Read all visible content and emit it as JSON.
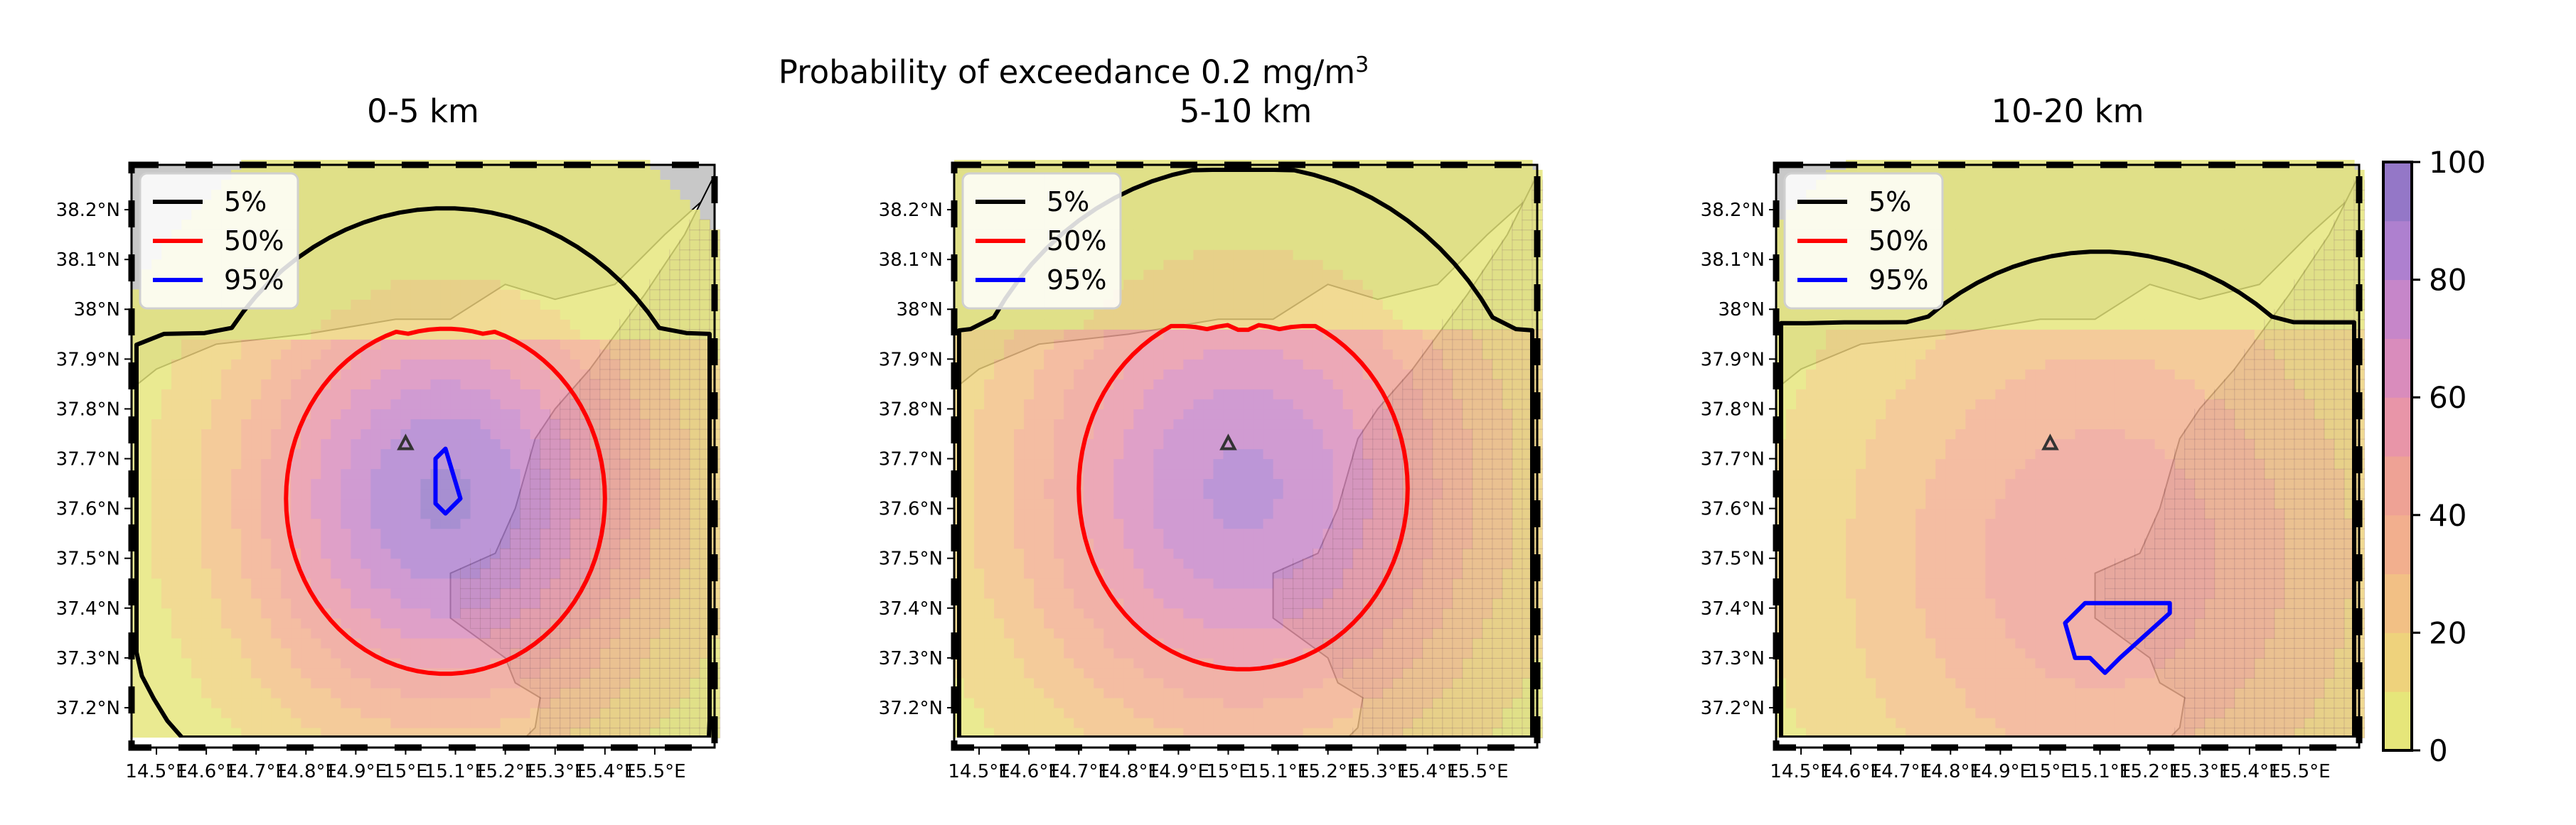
{
  "figure": {
    "title_main": "Probability of exceedance 0.2 mg/m",
    "title_sup": "3",
    "threshold_value": 0.2
  },
  "panels": [
    {
      "title": "0-5 km",
      "peak": 92,
      "spread": 1.0,
      "center": [
        15.08,
        37.62
      ],
      "p95": [
        [
          15.08,
          37.72
        ],
        [
          15.11,
          37.62
        ],
        [
          15.08,
          37.59
        ],
        [
          15.06,
          37.61
        ],
        [
          15.06,
          37.7
        ]
      ]
    },
    {
      "title": "5-10 km",
      "peak": 82,
      "spread": 1.15,
      "center": [
        15.03,
        37.64
      ],
      "p95": []
    },
    {
      "title": "10-20 km",
      "peak": 48,
      "spread": 1.35,
      "center": [
        15.1,
        37.5
      ],
      "p95": [
        [
          15.03,
          37.37
        ],
        [
          15.07,
          37.41
        ],
        [
          15.24,
          37.41
        ],
        [
          15.24,
          37.39
        ],
        [
          15.14,
          37.3
        ],
        [
          15.11,
          37.27
        ],
        [
          15.08,
          37.3
        ],
        [
          15.05,
          37.3
        ]
      ]
    }
  ],
  "map": {
    "lon_range": [
      14.45,
      15.62
    ],
    "lat_range": [
      37.12,
      38.29
    ],
    "lon_ticks": [
      14.5,
      14.6,
      14.7,
      14.8,
      14.9,
      15.0,
      15.1,
      15.2,
      15.3,
      15.4,
      15.5
    ],
    "lon_tick_labels": [
      "14.5°E",
      "14.6°E",
      "14.7°E",
      "14.8°E",
      "14.9°E",
      "15°E",
      "15.1°E",
      "15.2°E",
      "15.3°E",
      "15.4°E",
      "15.5°E"
    ],
    "lat_ticks": [
      37.2,
      37.3,
      37.4,
      37.5,
      37.6,
      37.7,
      37.8,
      37.9,
      38.0,
      38.1,
      38.2
    ],
    "lat_tick_labels": [
      "37.2°N",
      "37.3°N",
      "37.4°N",
      "37.5°N",
      "37.6°N",
      "37.7°N",
      "37.8°N",
      "37.9°N",
      "38°N",
      "38.1°N",
      "38.2°N"
    ],
    "vent": [
      15.0,
      37.73
    ],
    "land_color": "#c8c8c8",
    "coast_color": "#000000"
  },
  "legend": {
    "entries": [
      {
        "label": "5%",
        "color": "#000000"
      },
      {
        "label": "50%",
        "color": "#ff0000"
      },
      {
        "label": "95%",
        "color": "#0000ff"
      }
    ],
    "placement": "upper-left"
  },
  "colorbar": {
    "ticks": [
      0,
      20,
      40,
      60,
      80,
      100
    ],
    "tick_labels": [
      "0",
      "20",
      "40",
      "60",
      "80",
      "100"
    ],
    "levels": [
      0,
      10,
      20,
      30,
      40,
      50,
      60,
      70,
      80,
      90,
      100
    ],
    "colors": [
      "#e6e67a",
      "#eed27c",
      "#f2c085",
      "#f2af8e",
      "#eea295",
      "#e895a8",
      "#d98cbc",
      "#c686c9",
      "#ae80cf",
      "#9477c7",
      "#7f7ebe"
    ]
  }
}
